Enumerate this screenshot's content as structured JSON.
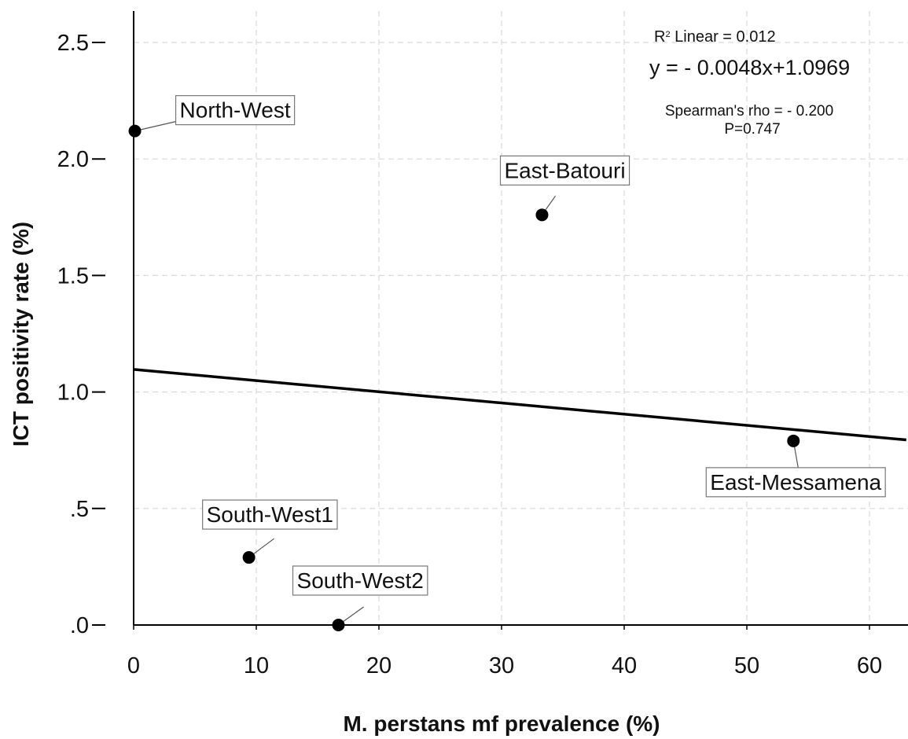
{
  "chart_data": {
    "type": "scatter",
    "xlabel": "M. perstans mf prevalence (%)",
    "ylabel": "ICT positivity rate (%)",
    "xlim": [
      0,
      63
    ],
    "ylim": [
      0,
      2.6
    ],
    "x_ticks": [
      0,
      10,
      20,
      30,
      40,
      50,
      60
    ],
    "x_tick_labels": [
      "0",
      "10",
      "20",
      "30",
      "40",
      "50",
      "60"
    ],
    "y_ticks": [
      0,
      0.5,
      1.0,
      1.5,
      2.0,
      2.5
    ],
    "y_tick_labels": [
      ".0",
      ".5",
      "1.0",
      "1.5",
      "2.0",
      "2.5"
    ],
    "grid": true,
    "points": [
      {
        "label": "North-West",
        "x": 0.1,
        "y": 2.12
      },
      {
        "label": "East-Batouri",
        "x": 33.3,
        "y": 1.76
      },
      {
        "label": "East-Messamena",
        "x": 53.8,
        "y": 0.79
      },
      {
        "label": "South-West1",
        "x": 9.4,
        "y": 0.29
      },
      {
        "label": "South-West2",
        "x": 16.7,
        "y": 0.0
      }
    ],
    "fit_line": {
      "slope": -0.0048,
      "intercept": 1.0969
    },
    "annotations": {
      "r2_prefix": "R",
      "r2_sup": "2",
      "r2_text": " Linear = 0.012",
      "equation": "y = - 0.0048x+1.0969",
      "spearman": "Spearman's rho = - 0.200",
      "p_value": "P=0.747"
    }
  }
}
